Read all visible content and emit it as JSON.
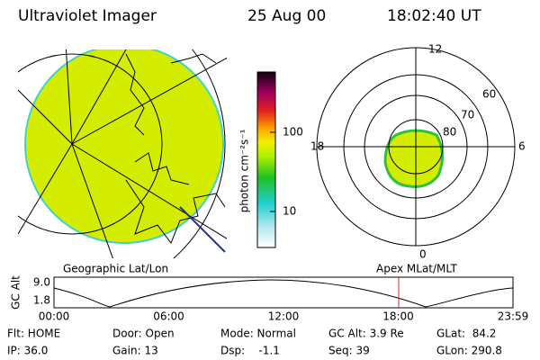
{
  "header": {
    "title": "Ultraviolet Imager",
    "date": "25 Aug 00",
    "time": "18:02:40 UT"
  },
  "colorbar": {
    "label": "photon cm⁻²s⁻¹",
    "ticks": [
      "100",
      "10"
    ]
  },
  "polar": {
    "mlt_labels": [
      "12",
      "18",
      "6",
      "0"
    ],
    "lat_labels": [
      "60",
      "70",
      "80"
    ]
  },
  "panel_titles": {
    "left": "Geographic Lat/Lon",
    "right": "Apex MLat/MLT"
  },
  "altitude_plot": {
    "axis_label": "GC Alt",
    "yticks": [
      "9.0",
      "1.8"
    ],
    "xticks": [
      "00:00",
      "06:00",
      "12:00",
      "18:00",
      "23:59"
    ]
  },
  "footer": {
    "rows": [
      [
        "Flt: HOME",
        "Door: Open",
        "Mode: Normal",
        "GC Alt: 3.9 Re",
        "GLat:  84.2"
      ],
      [
        "IP: 36.0",
        "Gain: 13",
        "Dsp:    -1.1",
        "Seq: 39",
        "GLon: 290.8"
      ]
    ]
  }
}
